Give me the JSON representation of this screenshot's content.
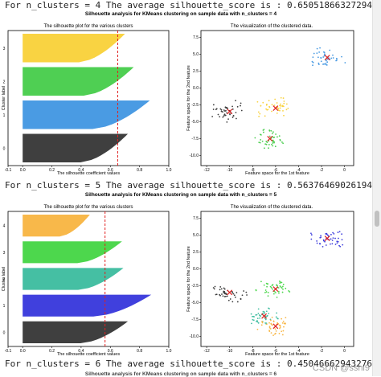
{
  "outputs": [
    "For n_clusters = 4 The average silhouette_score is : 0.6505186632729437",
    "For n_clusters = 5 The average silhouette_score is : 0.56376469026194",
    "For n_clusters = 6 The average silhouette_score is : 0.4504666294327651"
  ],
  "suptitles": [
    "Silhouette analysis for KMeans clustering on sample data with n_clusters = 4",
    "Silhouette analysis for KMeans clustering on sample data with n_clusters = 5",
    "Silhouette analysis for KMeans clustering on sample data with n_clusters = 6"
  ],
  "left_plot": {
    "title": "The silhouette plot for the various clusters",
    "xlabel": "The silhouette coefficient values",
    "ylabel": "Cluster label",
    "xticks": [
      "-0.1",
      "0.0",
      "0.2",
      "0.4",
      "0.6",
      "0.8",
      "1.0"
    ]
  },
  "right_plot": {
    "title": "The visualization of the clustered data.",
    "xlabel": "Feature space for the 1st feature",
    "ylabel": "Feature space for the 2nd feature",
    "xticks": [
      "-12",
      "-10",
      "-8",
      "-6",
      "-4",
      "-2",
      "0"
    ],
    "yticks": [
      "7.5",
      "5.0",
      "2.5",
      "0.0",
      "-2.5",
      "-5.0",
      "-7.5",
      "-10.0"
    ]
  },
  "colors": {
    "k4": [
      "#3f3f3f",
      "#4a9be3",
      "#4fcf53",
      "#f9d342"
    ],
    "k5": [
      "#3f3f3f",
      "#4040dd",
      "#45bfa3",
      "#4dd74d",
      "#f8b84a"
    ]
  },
  "chart_data": [
    {
      "type": "bar",
      "n_clusters": 4,
      "average_silhouette_score": 0.6505186632729437,
      "cluster_labels": [
        "0",
        "1",
        "2",
        "3"
      ],
      "max_silhouette": [
        0.72,
        0.87,
        0.76,
        0.7
      ],
      "xlim": [
        -0.1,
        1.0
      ],
      "centers": [
        [
          -10,
          -3.5
        ],
        [
          -1.5,
          4.5
        ],
        [
          -6.5,
          -7.5
        ],
        [
          -6,
          -3
        ]
      ]
    },
    {
      "type": "bar",
      "n_clusters": 5,
      "average_silhouette_score": 0.56376469026194,
      "cluster_labels": [
        "0",
        "1",
        "2",
        "3",
        "4"
      ],
      "max_silhouette": [
        0.72,
        0.88,
        0.69,
        0.68,
        0.46
      ],
      "xlim": [
        -0.1,
        1.0
      ],
      "centers": [
        [
          -10,
          -3.5
        ],
        [
          -1.5,
          4.5
        ],
        [
          -7,
          -7
        ],
        [
          -6,
          -3
        ],
        [
          -6,
          -8.5
        ]
      ]
    }
  ],
  "footer": {
    "watermark": "CSDN @sshi9"
  }
}
